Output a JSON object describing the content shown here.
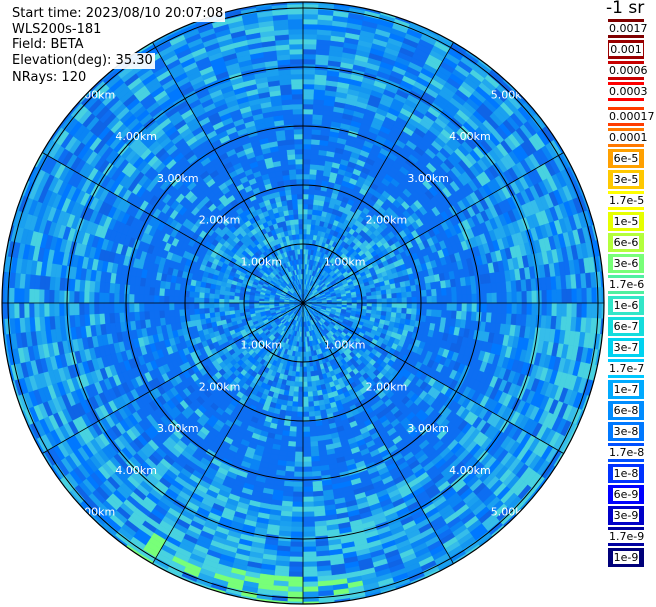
{
  "info": {
    "start_time": "Start time: 2023/08/10 20:07:08",
    "instrument": "WLS200s-181",
    "field": "Field: BETA",
    "elevation": "Elevation(deg): 35.30",
    "nrays": "NRays: 120"
  },
  "colorbar": {
    "title": "-1 sr",
    "items": [
      {
        "label": "0.0017",
        "color": "#800000"
      },
      {
        "label": "0.001",
        "color": "#9a0000"
      },
      {
        "label": "0.0006",
        "color": "#c80000"
      },
      {
        "label": "0.0003",
        "color": "#ff0000"
      },
      {
        "label": "0.00017",
        "color": "#ff3c00"
      },
      {
        "label": "0.0001",
        "color": "#ff7800"
      },
      {
        "label": "6e-5",
        "color": "#ffa000"
      },
      {
        "label": "3e-5",
        "color": "#ffc800"
      },
      {
        "label": "1.7e-5",
        "color": "#ffff00"
      },
      {
        "label": "1e-5",
        "color": "#e6ff00"
      },
      {
        "label": "6e-6",
        "color": "#b4ff3c"
      },
      {
        "label": "3e-6",
        "color": "#78ff78"
      },
      {
        "label": "1.7e-6",
        "color": "#50f0a0"
      },
      {
        "label": "1e-6",
        "color": "#32e6c8"
      },
      {
        "label": "6e-7",
        "color": "#14dcdc"
      },
      {
        "label": "3e-7",
        "color": "#00d2f0"
      },
      {
        "label": "1.7e-7",
        "color": "#00c8ff"
      },
      {
        "label": "1e-7",
        "color": "#00aaff"
      },
      {
        "label": "6e-8",
        "color": "#008cff"
      },
      {
        "label": "3e-8",
        "color": "#0078ff"
      },
      {
        "label": "1.7e-8",
        "color": "#0050ff"
      },
      {
        "label": "1e-8",
        "color": "#0032ff"
      },
      {
        "label": "6e-9",
        "color": "#0000ff"
      },
      {
        "label": "3e-9",
        "color": "#0000c8"
      },
      {
        "label": "1.7e-9",
        "color": "#0000a0"
      },
      {
        "label": "1e-9",
        "color": "#00007a"
      }
    ]
  },
  "plot": {
    "range_labels": [
      "1.00km",
      "2.00km",
      "3.00km",
      "4.00km",
      "5.00km"
    ],
    "ring_color": "#000000",
    "background_color": "#0a7ef2",
    "field_colors": [
      "#0078ff",
      "#0a84f5",
      "#1496f0",
      "#0d6ef2",
      "#22a8ee",
      "#36bdea",
      "#0f64e6",
      "#48d2e0",
      "#1aa0f0"
    ],
    "enhancement_color": "#78ff78"
  }
}
